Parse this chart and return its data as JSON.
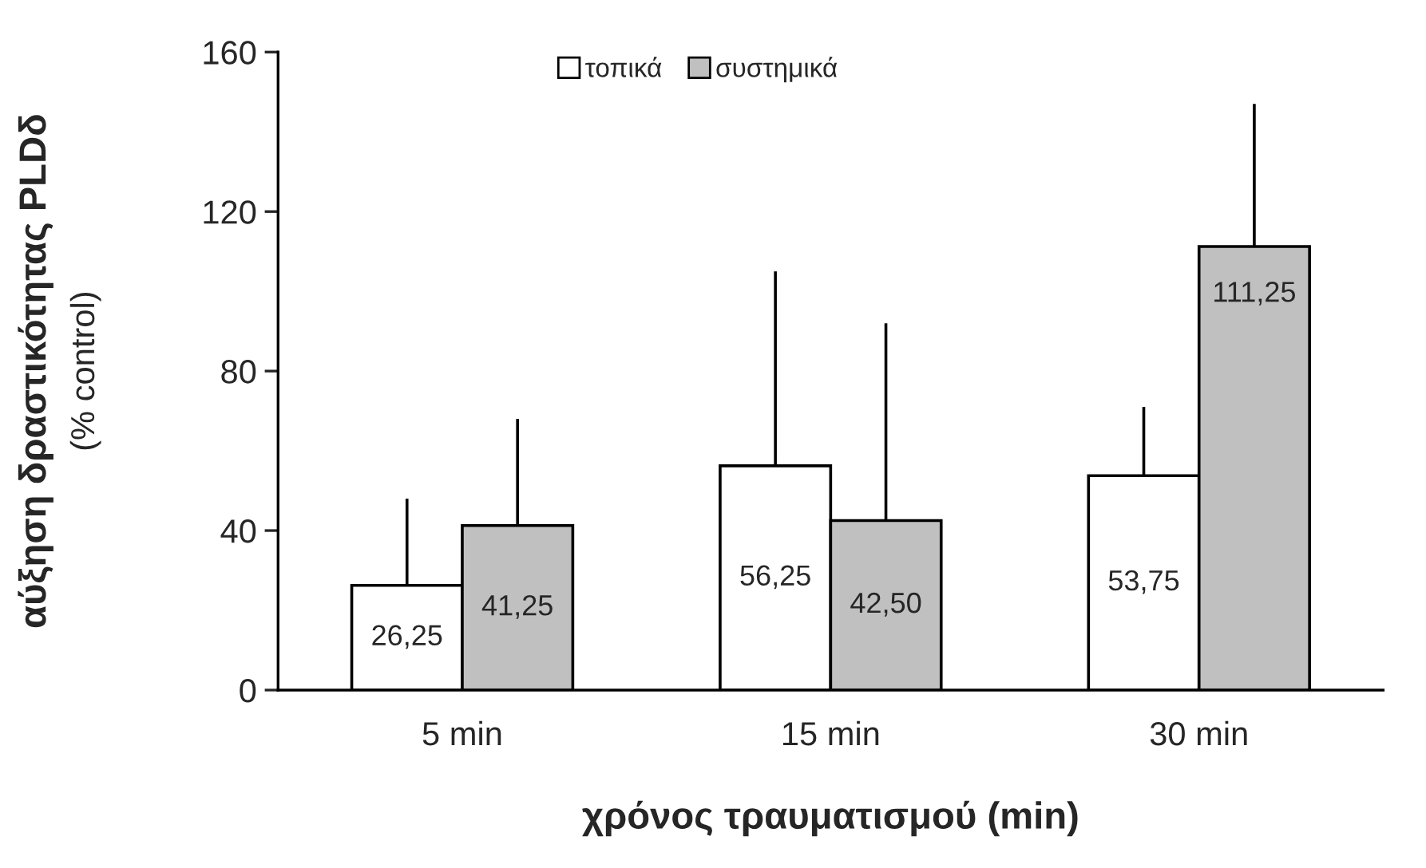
{
  "chart_data": {
    "type": "bar",
    "xlabel": "χρόνος τραυματισμού (min)",
    "ylabel": "αύξηση δραστικότητας PLDδ\n(% control)",
    "categories": [
      "5 min",
      "15 min",
      "30 min"
    ],
    "series": [
      {
        "name": "τοπικά",
        "color": "#ffffff",
        "values": [
          26.25,
          56.25,
          53.75
        ],
        "errors": [
          [
            26.25,
            48
          ],
          [
            56.25,
            105
          ],
          [
            53.75,
            71
          ]
        ],
        "value_labels": [
          "26,25",
          "56,25",
          "53,75"
        ]
      },
      {
        "name": "συστημικά",
        "color": "#c0c0c0",
        "values": [
          41.25,
          42.5,
          111.25
        ],
        "errors": [
          [
            41.25,
            68
          ],
          [
            42.5,
            92
          ],
          [
            111.25,
            147
          ]
        ],
        "value_labels": [
          "41,25",
          "42,50",
          "111,25"
        ]
      }
    ],
    "ylim": [
      0,
      160
    ],
    "yticks": [
      0,
      40,
      80,
      120,
      160
    ],
    "grid": false,
    "legend": "top"
  }
}
